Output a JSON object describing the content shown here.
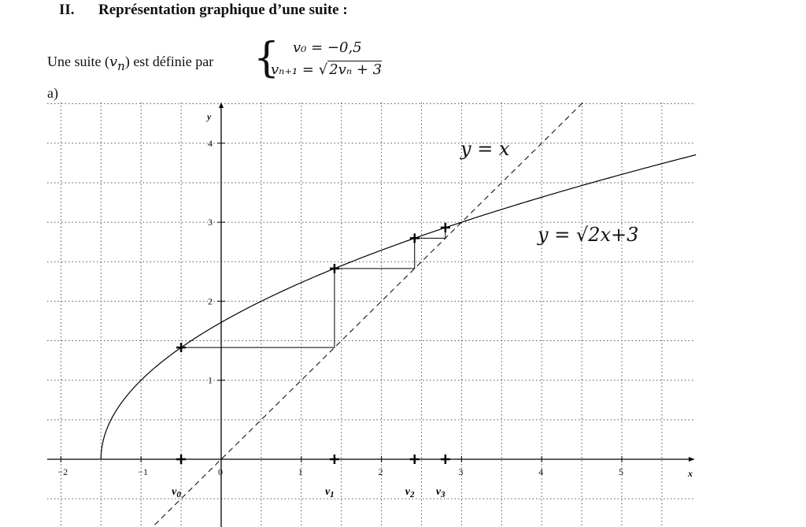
{
  "section": {
    "number": "II.",
    "title": "Représentation graphique d’une suite :"
  },
  "intro": {
    "text_before": "Une suite (",
    "var": "v",
    "sub": "n",
    "text_after": ") est définie par"
  },
  "system": {
    "eq1": "v₀ = −0,5",
    "eq2_left": "vₙ₊₁ = ",
    "eq2_sqrt": "2vₙ + 3"
  },
  "part": "a)",
  "chart_data": {
    "type": "line",
    "xlabel": "x",
    "ylabel": "y",
    "xlim": [
      -2.2,
      6
    ],
    "ylim": [
      -0.8,
      4.5
    ],
    "x_ticks": [
      "-2",
      "-1",
      "0",
      "1",
      "2",
      "3",
      "4",
      "5"
    ],
    "y_ticks": [
      "1",
      "2",
      "3",
      "4"
    ],
    "grid": "dotted, every 0.5",
    "series": [
      {
        "name": "y = x",
        "function": "x",
        "style": "dashed"
      },
      {
        "name": "y = √2x+3",
        "function": "sqrt(2x+3)",
        "style": "solid",
        "domain_start": -1.5
      }
    ],
    "sequence": {
      "labels": [
        "v0",
        "v1",
        "v2",
        "v3"
      ],
      "values": [
        -0.5,
        1.414,
        2.414,
        2.798
      ],
      "next": 2.933
    },
    "annotations": {
      "line_label": "y = x",
      "curve_label": "y = √2x+3"
    }
  }
}
